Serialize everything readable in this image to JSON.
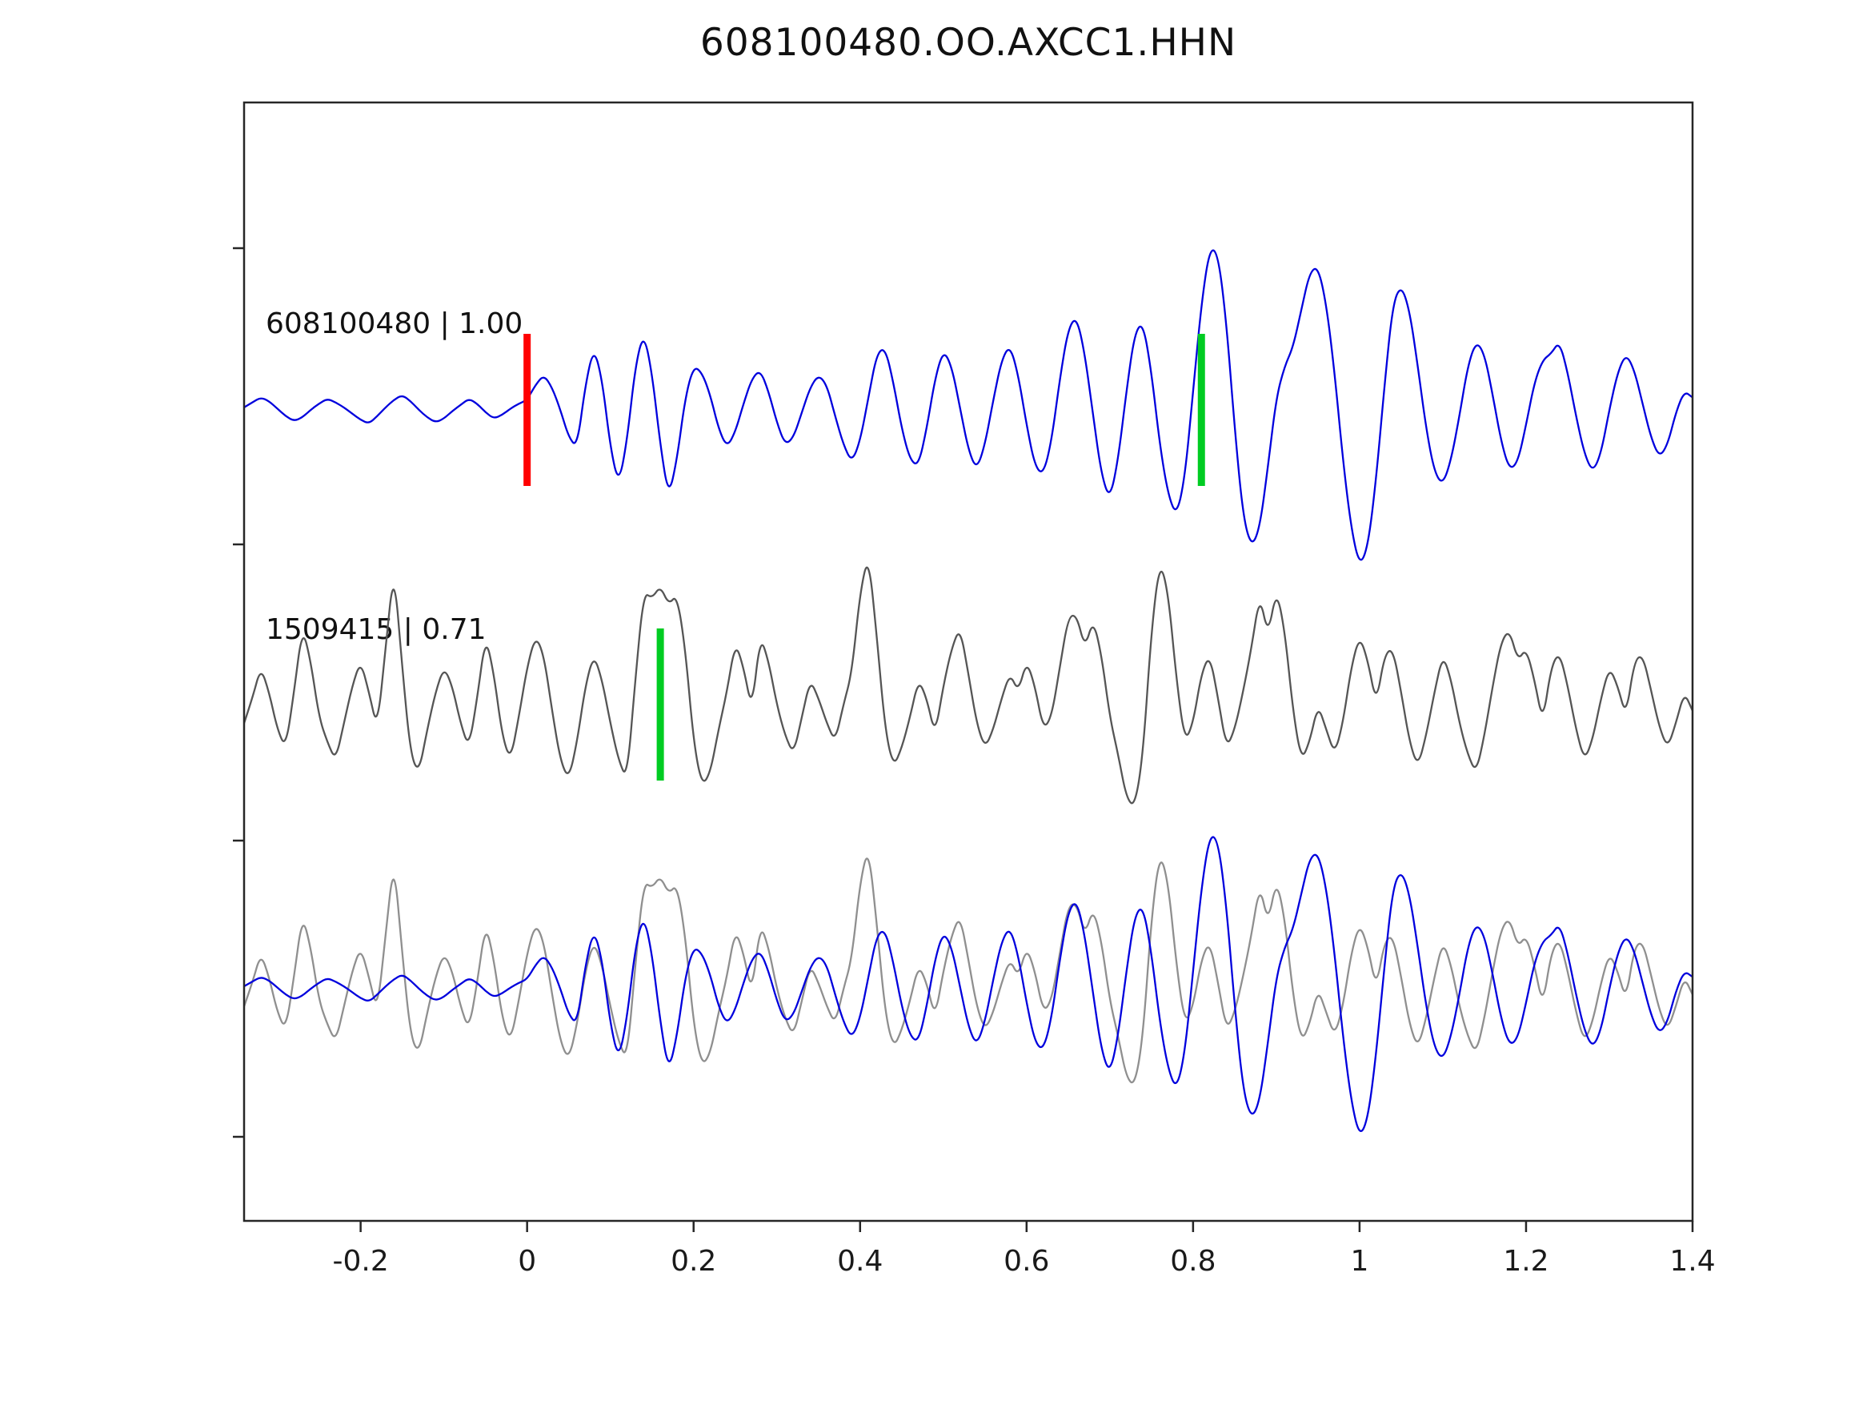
{
  "chart_data": {
    "type": "line",
    "title": "608100480.OO.AXCC1.HHN",
    "xlabel": "",
    "ylabel": "",
    "xlim": [
      -0.34,
      1.4
    ],
    "grid": false,
    "legend": "none",
    "x_start": -0.34,
    "sample_interval": 0.01,
    "x_ticks": [
      {
        "value": -0.2,
        "label": "-0.2"
      },
      {
        "value": 0,
        "label": "0"
      },
      {
        "value": 0.2,
        "label": "0.2"
      },
      {
        "value": 0.4,
        "label": "0.4"
      },
      {
        "value": 0.6,
        "label": "0.6"
      },
      {
        "value": 0.8,
        "label": "0.8"
      },
      {
        "value": 1,
        "label": "1"
      },
      {
        "value": 1.2,
        "label": "1.2"
      },
      {
        "value": 1.4,
        "label": "1.4"
      }
    ],
    "series": {
      "template": {
        "name": "608100480",
        "color": "#0000dd",
        "values": [
          0.02,
          0.06,
          0.1,
          0.07,
          0.01,
          -0.05,
          -0.09,
          -0.06,
          0.0,
          0.05,
          0.09,
          0.06,
          0.02,
          -0.03,
          -0.08,
          -0.11,
          -0.05,
          0.02,
          0.08,
          0.12,
          0.07,
          0.0,
          -0.06,
          -0.1,
          -0.07,
          -0.01,
          0.04,
          0.09,
          0.05,
          -0.02,
          -0.07,
          -0.04,
          0.01,
          0.05,
          0.08,
          0.2,
          0.28,
          0.18,
          0.0,
          -0.22,
          -0.3,
          0.2,
          0.5,
          0.25,
          -0.3,
          -0.6,
          -0.25,
          0.35,
          0.62,
          0.3,
          -0.28,
          -0.7,
          -0.4,
          0.1,
          0.35,
          0.3,
          0.12,
          -0.15,
          -0.3,
          -0.18,
          0.05,
          0.25,
          0.32,
          0.15,
          -0.1,
          -0.28,
          -0.22,
          -0.02,
          0.18,
          0.28,
          0.2,
          -0.05,
          -0.28,
          -0.42,
          -0.25,
          0.1,
          0.45,
          0.5,
          0.22,
          -0.15,
          -0.4,
          -0.45,
          -0.15,
          0.25,
          0.48,
          0.35,
          0.02,
          -0.32,
          -0.48,
          -0.28,
          0.08,
          0.4,
          0.52,
          0.28,
          -0.12,
          -0.45,
          -0.52,
          -0.25,
          0.25,
          0.65,
          0.75,
          0.45,
          -0.05,
          -0.52,
          -0.72,
          -0.4,
          0.15,
          0.62,
          0.7,
          0.3,
          -0.28,
          -0.68,
          -0.85,
          -0.55,
          0.15,
          0.85,
          1.3,
          1.25,
          0.7,
          -0.15,
          -0.85,
          -1.1,
          -0.95,
          -0.45,
          0.1,
          0.35,
          0.5,
          0.8,
          1.1,
          1.15,
          0.85,
          0.3,
          -0.4,
          -0.95,
          -1.25,
          -1.1,
          -0.55,
          0.2,
          0.85,
          1.0,
          0.8,
          0.35,
          -0.15,
          -0.5,
          -0.6,
          -0.4,
          -0.05,
          0.35,
          0.55,
          0.45,
          0.12,
          -0.25,
          -0.48,
          -0.42,
          -0.12,
          0.22,
          0.4,
          0.45,
          0.55,
          0.3,
          -0.05,
          -0.35,
          -0.5,
          -0.35,
          0.0,
          0.3,
          0.45,
          0.32,
          0.05,
          -0.22,
          -0.38,
          -0.28,
          -0.02,
          0.15,
          0.1
        ]
      },
      "detection": {
        "name": "1509415",
        "color": "#555555",
        "values": [
          -0.15,
          0.05,
          0.3,
          0.1,
          -0.2,
          -0.35,
          0.1,
          0.62,
          0.35,
          -0.1,
          -0.3,
          -0.45,
          -0.15,
          0.15,
          0.35,
          0.1,
          -0.2,
          0.45,
          1.1,
          0.3,
          -0.4,
          -0.55,
          -0.2,
          0.1,
          0.3,
          0.15,
          -0.15,
          -0.35,
          0.05,
          0.55,
          0.25,
          -0.25,
          -0.45,
          -0.1,
          0.3,
          0.55,
          0.4,
          -0.05,
          -0.45,
          -0.6,
          -0.3,
          0.15,
          0.4,
          0.2,
          -0.15,
          -0.45,
          -0.6,
          0.2,
          0.9,
          0.85,
          0.95,
          0.8,
          0.88,
          0.45,
          -0.3,
          -0.65,
          -0.55,
          -0.2,
          0.1,
          0.5,
          0.3,
          -0.05,
          0.55,
          0.35,
          0.0,
          -0.25,
          -0.4,
          -0.1,
          0.2,
          0.05,
          -0.15,
          -0.3,
          0.0,
          0.25,
          0.9,
          1.2,
          0.55,
          -0.2,
          -0.5,
          -0.35,
          -0.1,
          0.2,
          0.05,
          -0.25,
          0.15,
          0.45,
          0.62,
          0.25,
          -0.15,
          -0.35,
          -0.2,
          0.05,
          0.25,
          0.1,
          0.35,
          0.15,
          -0.2,
          -0.1,
          0.3,
          0.7,
          0.72,
          0.45,
          0.68,
          0.4,
          -0.1,
          -0.4,
          -0.75,
          -0.82,
          -0.4,
          0.6,
          1.15,
          0.9,
          0.2,
          -0.3,
          -0.15,
          0.25,
          0.4,
          0.05,
          -0.35,
          -0.2,
          0.1,
          0.45,
          0.88,
          0.55,
          0.92,
          0.6,
          -0.05,
          -0.45,
          -0.3,
          0.0,
          -0.2,
          -0.4,
          -0.15,
          0.3,
          0.55,
          0.35,
          0.0,
          0.4,
          0.45,
          0.1,
          -0.3,
          -0.5,
          -0.25,
          0.1,
          0.4,
          0.2,
          -0.15,
          -0.4,
          -0.55,
          -0.25,
          0.15,
          0.5,
          0.6,
          0.35,
          0.45,
          0.2,
          -0.15,
          0.3,
          0.42,
          0.15,
          -0.2,
          -0.45,
          -0.28,
          0.05,
          0.3,
          0.15,
          -0.1,
          0.35,
          0.4,
          0.12,
          -0.18,
          -0.35,
          -0.15,
          0.1,
          -0.05
        ]
      }
    },
    "rows": [
      {
        "row": 0,
        "label": "608100480 | 1.00",
        "traces": [
          {
            "series": "template",
            "color": "#0000dd",
            "scale": 1
          }
        ],
        "markers": [
          {
            "x": 0.0,
            "color": "#ff0000"
          },
          {
            "x": 0.81,
            "color": "#00cc22"
          }
        ]
      },
      {
        "row": 1,
        "label": "1509415 | 0.71",
        "traces": [
          {
            "series": "detection",
            "color": "#555555",
            "scale": 1
          }
        ],
        "markers": [
          {
            "x": 0.16,
            "color": "#00cc22"
          }
        ]
      },
      {
        "row": 2,
        "label": "",
        "traces": [
          {
            "series": "detection",
            "color": "#8f8f8f",
            "scale": 0.95
          },
          {
            "series": "template",
            "color": "#0000dd",
            "scale": 0.95
          }
        ],
        "markers": []
      }
    ]
  },
  "colors": {
    "frame": "#262626",
    "tick_label": "#1a1a1a",
    "template_blue": "#0000dd",
    "detection_gray": "#555555",
    "overlay_gray": "#8f8f8f",
    "pick_red": "#ff0000",
    "pick_green": "#00cc22"
  }
}
